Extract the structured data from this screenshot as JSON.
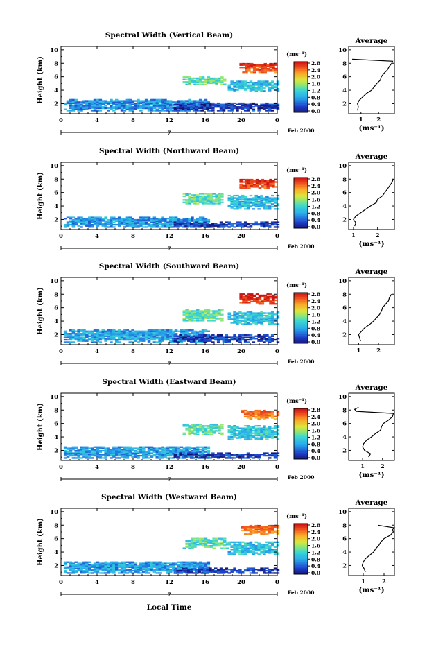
{
  "colorbar": {
    "unit_label": "(ms⁻¹)",
    "ticks": [
      "2.8",
      "2.4",
      "2.0",
      "1.6",
      "1.2",
      "0.8",
      "0.4",
      "0.0"
    ]
  },
  "footer": {
    "xlabel": "Local Time",
    "date_label": "Feb 2000",
    "day_marker": "7"
  },
  "chart_data": [
    {
      "type": "heatmap",
      "title": "Spectral Width (Vertical Beam)",
      "ylabel": "Height (km)",
      "xticks": [
        "0",
        "4",
        "8",
        "12",
        "16",
        "20",
        "0"
      ],
      "yticks": [
        "2",
        "4",
        "6",
        "8",
        "10"
      ],
      "xlim_hours": [
        0,
        24
      ],
      "ylim_km": [
        0.5,
        10.5
      ],
      "colorbar_range_ms": [
        0.0,
        2.8
      ],
      "regions": [
        {
          "t0": 0.3,
          "t1": 16.5,
          "h0": 0.9,
          "h1": 2.7,
          "level": 0.75
        },
        {
          "t0": 12.5,
          "t1": 24,
          "h0": 0.9,
          "h1": 2.1,
          "level": 0.3
        },
        {
          "t0": 13.5,
          "t1": 18.2,
          "h0": 4.8,
          "h1": 6.0,
          "level": 1.35
        },
        {
          "t0": 18.5,
          "t1": 24,
          "h0": 3.8,
          "h1": 5.4,
          "level": 1.0
        },
        {
          "t0": 19.8,
          "t1": 24,
          "h0": 6.6,
          "h1": 8.0,
          "level": 2.4
        }
      ],
      "average": {
        "title": "Average",
        "xlabel": "(ms⁻¹)",
        "xticks": [
          "1",
          "2"
        ],
        "yticks": [
          "2",
          "4",
          "6",
          "8",
          "10"
        ],
        "xlim": [
          0.3,
          2.9
        ],
        "height_km": [
          1.0,
          1.5,
          2.0,
          2.5,
          3.0,
          3.5,
          4.0,
          4.5,
          5.0,
          5.5,
          6.0,
          6.5,
          7.0,
          7.5,
          8.0,
          8.3,
          8.6
        ],
        "width_ms": [
          0.8,
          0.85,
          0.8,
          0.9,
          1.1,
          1.3,
          1.6,
          1.75,
          1.9,
          2.1,
          2.15,
          2.3,
          2.5,
          2.6,
          2.75,
          2.8,
          0.5
        ]
      }
    },
    {
      "type": "heatmap",
      "title": "Spectral Width (Northward Beam)",
      "ylabel": "Height (km)",
      "xticks": [
        "0",
        "4",
        "8",
        "12",
        "16",
        "20",
        "0"
      ],
      "yticks": [
        "2",
        "4",
        "6",
        "8",
        "10"
      ],
      "xlim_hours": [
        0,
        24
      ],
      "ylim_km": [
        0.5,
        10.5
      ],
      "colorbar_range_ms": [
        0.0,
        2.8
      ],
      "regions": [
        {
          "t0": 0.3,
          "t1": 16.5,
          "h0": 0.8,
          "h1": 2.4,
          "level": 0.8
        },
        {
          "t0": 12.5,
          "t1": 24,
          "h0": 0.8,
          "h1": 1.6,
          "level": 0.3
        },
        {
          "t0": 13.5,
          "t1": 18.0,
          "h0": 4.3,
          "h1": 5.8,
          "level": 1.35
        },
        {
          "t0": 18.5,
          "t1": 24,
          "h0": 3.5,
          "h1": 5.5,
          "level": 1.0
        },
        {
          "t0": 19.8,
          "t1": 24,
          "h0": 6.6,
          "h1": 8.0,
          "level": 2.45
        }
      ],
      "average": {
        "title": "Average",
        "xlabel": "(ms⁻¹)",
        "xticks": [
          "1",
          "2"
        ],
        "yticks": [
          "2",
          "4",
          "6",
          "8",
          "10"
        ],
        "xlim": [
          0.8,
          2.7
        ],
        "height_km": [
          1.0,
          1.5,
          2.0,
          2.5,
          3.0,
          3.5,
          4.0,
          4.5,
          5.0,
          5.5,
          6.0,
          6.5,
          7.0,
          7.5,
          8.0
        ],
        "width_ms": [
          1.05,
          1.1,
          1.0,
          1.1,
          1.3,
          1.5,
          1.7,
          1.95,
          2.0,
          2.2,
          2.3,
          2.4,
          2.5,
          2.6,
          2.65
        ]
      }
    },
    {
      "type": "heatmap",
      "title": "Spectral Width (Southward Beam)",
      "ylabel": "Height (km)",
      "xticks": [
        "0",
        "4",
        "8",
        "12",
        "16",
        "20",
        "0"
      ],
      "yticks": [
        "2",
        "4",
        "6",
        "8",
        "10"
      ],
      "xlim_hours": [
        0,
        24
      ],
      "ylim_km": [
        0.5,
        10.5
      ],
      "colorbar_range_ms": [
        0.0,
        2.8
      ],
      "regions": [
        {
          "t0": 0.3,
          "t1": 16.5,
          "h0": 0.8,
          "h1": 2.7,
          "level": 0.85
        },
        {
          "t0": 12.5,
          "t1": 24,
          "h0": 0.8,
          "h1": 1.9,
          "level": 0.3
        },
        {
          "t0": 13.5,
          "t1": 18.0,
          "h0": 4.0,
          "h1": 5.7,
          "level": 1.4
        },
        {
          "t0": 18.5,
          "t1": 24,
          "h0": 3.5,
          "h1": 5.4,
          "level": 1.05
        },
        {
          "t0": 19.8,
          "t1": 24,
          "h0": 6.5,
          "h1": 8.0,
          "level": 2.5
        }
      ],
      "average": {
        "title": "Average",
        "xlabel": "",
        "xticks": [
          "1",
          "2"
        ],
        "yticks": [
          "2",
          "4",
          "6",
          "8",
          "10"
        ],
        "xlim": [
          0.5,
          2.8
        ],
        "height_km": [
          1.0,
          1.5,
          2.0,
          2.5,
          3.0,
          3.5,
          4.0,
          4.5,
          5.0,
          5.5,
          6.0,
          6.5,
          7.0,
          7.5,
          8.0
        ],
        "width_ms": [
          1.1,
          1.05,
          1.0,
          1.15,
          1.3,
          1.55,
          1.75,
          1.9,
          2.05,
          2.15,
          2.2,
          2.35,
          2.5,
          2.55,
          2.65
        ]
      }
    },
    {
      "type": "heatmap",
      "title": "Spectral Width (Eastward Beam)",
      "ylabel": "Height (km)",
      "xticks": [
        "0",
        "4",
        "8",
        "12",
        "16",
        "20",
        "0"
      ],
      "yticks": [
        "2",
        "4",
        "6",
        "8",
        "10"
      ],
      "xlim_hours": [
        0,
        24
      ],
      "ylim_km": [
        0.5,
        10.5
      ],
      "colorbar_range_ms": [
        0.0,
        2.8
      ],
      "regions": [
        {
          "t0": 0.3,
          "t1": 16.5,
          "h0": 0.8,
          "h1": 2.6,
          "level": 0.85
        },
        {
          "t0": 12.5,
          "t1": 24,
          "h0": 0.8,
          "h1": 1.6,
          "level": 0.3
        },
        {
          "t0": 13.5,
          "t1": 18.0,
          "h0": 4.3,
          "h1": 5.8,
          "level": 1.35
        },
        {
          "t0": 18.5,
          "t1": 24,
          "h0": 3.6,
          "h1": 5.6,
          "level": 1.1
        },
        {
          "t0": 20.0,
          "t1": 24,
          "h0": 6.6,
          "h1": 8.0,
          "level": 2.2
        }
      ],
      "average": {
        "title": "Average",
        "xlabel": "(ms⁻¹)",
        "xticks": [
          "1",
          "2"
        ],
        "yticks": [
          "2",
          "4",
          "6",
          "8",
          "10"
        ],
        "xlim": [
          0.3,
          2.6
        ],
        "height_km": [
          1.0,
          1.5,
          2.0,
          2.5,
          3.0,
          3.5,
          4.0,
          4.5,
          5.0,
          5.5,
          6.0,
          6.5,
          7.0,
          7.5,
          7.8,
          8.1,
          8.4
        ],
        "width_ms": [
          1.3,
          1.4,
          1.1,
          1.0,
          1.05,
          1.2,
          1.45,
          1.65,
          1.9,
          1.95,
          2.05,
          2.3,
          2.5,
          2.55,
          0.7,
          0.6,
          0.8
        ]
      }
    },
    {
      "type": "heatmap",
      "title": "Spectral Width (Westward Beam)",
      "ylabel": "Height (km)",
      "xticks": [
        "0",
        "4",
        "8",
        "12",
        "16",
        "20",
        "0"
      ],
      "yticks": [
        "2",
        "4",
        "6",
        "8",
        "10"
      ],
      "xlim_hours": [
        0,
        24
      ],
      "ylim_km": [
        0.5,
        10.5
      ],
      "colorbar_range_ms": [
        0.0,
        2.8
      ],
      "regions": [
        {
          "t0": 0.3,
          "t1": 16.5,
          "h0": 0.8,
          "h1": 2.5,
          "level": 0.8
        },
        {
          "t0": 12.5,
          "t1": 24,
          "h0": 0.8,
          "h1": 1.6,
          "level": 0.3
        },
        {
          "t0": 13.5,
          "t1": 18.5,
          "h0": 4.5,
          "h1": 6.0,
          "level": 1.3
        },
        {
          "t0": 18.5,
          "t1": 24,
          "h0": 3.6,
          "h1": 5.4,
          "level": 1.05
        },
        {
          "t0": 20.0,
          "t1": 24,
          "h0": 6.6,
          "h1": 8.0,
          "level": 2.2
        }
      ],
      "average": {
        "title": "Average",
        "xlabel": "(ms⁻¹)",
        "xticks": [
          "1",
          "2"
        ],
        "yticks": [
          "2",
          "4",
          "6",
          "8",
          "10"
        ],
        "xlim": [
          0.3,
          2.5
        ],
        "height_km": [
          1.0,
          1.5,
          2.0,
          2.5,
          3.0,
          3.5,
          4.0,
          4.5,
          5.0,
          5.5,
          6.0,
          6.5,
          7.0,
          7.3,
          7.6,
          8.0
        ],
        "width_ms": [
          1.1,
          1.05,
          0.95,
          1.0,
          1.1,
          1.3,
          1.5,
          1.6,
          1.75,
          1.85,
          2.0,
          2.3,
          2.45,
          2.4,
          2.5,
          1.7
        ]
      }
    }
  ]
}
